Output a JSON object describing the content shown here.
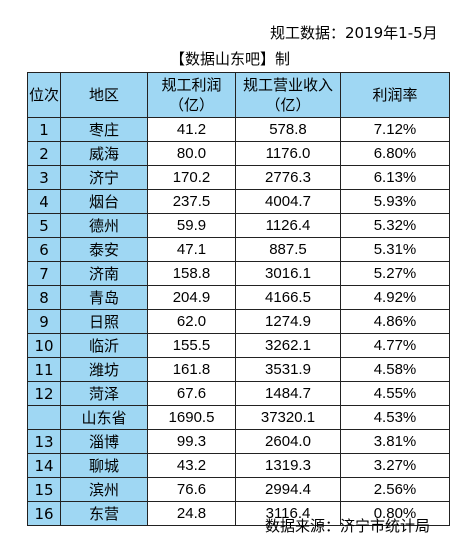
{
  "header": {
    "data_note": "规工数据：2019年1-5月",
    "maker_note": "【数据山东吧】制"
  },
  "table": {
    "columns": [
      "位次",
      "地区",
      "规工利润（亿）",
      "规工营业收入（亿）",
      "利润率"
    ],
    "rows": [
      {
        "rank": "1",
        "region": "枣庄",
        "profit": "41.2",
        "revenue": "578.8",
        "margin": "7.12%"
      },
      {
        "rank": "2",
        "region": "威海",
        "profit": "80.0",
        "revenue": "1176.0",
        "margin": "6.80%"
      },
      {
        "rank": "3",
        "region": "济宁",
        "profit": "170.2",
        "revenue": "2776.3",
        "margin": "6.13%"
      },
      {
        "rank": "4",
        "region": "烟台",
        "profit": "237.5",
        "revenue": "4004.7",
        "margin": "5.93%"
      },
      {
        "rank": "5",
        "region": "德州",
        "profit": "59.9",
        "revenue": "1126.4",
        "margin": "5.32%"
      },
      {
        "rank": "6",
        "region": "泰安",
        "profit": "47.1",
        "revenue": "887.5",
        "margin": "5.31%"
      },
      {
        "rank": "7",
        "region": "济南",
        "profit": "158.8",
        "revenue": "3016.1",
        "margin": "5.27%"
      },
      {
        "rank": "8",
        "region": "青岛",
        "profit": "204.9",
        "revenue": "4166.5",
        "margin": "4.92%"
      },
      {
        "rank": "9",
        "region": "日照",
        "profit": "62.0",
        "revenue": "1274.9",
        "margin": "4.86%"
      },
      {
        "rank": "10",
        "region": "临沂",
        "profit": "155.5",
        "revenue": "3262.1",
        "margin": "4.77%"
      },
      {
        "rank": "11",
        "region": "潍坊",
        "profit": "161.8",
        "revenue": "3531.9",
        "margin": "4.58%"
      },
      {
        "rank": "12",
        "region": "菏泽",
        "profit": "67.6",
        "revenue": "1484.7",
        "margin": "4.55%"
      },
      {
        "rank": "",
        "region": "山东省",
        "profit": "1690.5",
        "revenue": "37320.1",
        "margin": "4.53%"
      },
      {
        "rank": "13",
        "region": "淄博",
        "profit": "99.3",
        "revenue": "2604.0",
        "margin": "3.81%"
      },
      {
        "rank": "14",
        "region": "聊城",
        "profit": "43.2",
        "revenue": "1319.3",
        "margin": "3.27%"
      },
      {
        "rank": "15",
        "region": "滨州",
        "profit": "76.6",
        "revenue": "2994.4",
        "margin": "2.56%"
      },
      {
        "rank": "16",
        "region": "东营",
        "profit": "24.8",
        "revenue": "3116.4",
        "margin": "0.80%"
      }
    ]
  },
  "footer": {
    "source": "数据来源：济宁市统计局"
  },
  "colors": {
    "header_fill": "#9fd7f3",
    "rank_fill": "#9fd7f3",
    "region_fill": "#9fd7f3"
  }
}
